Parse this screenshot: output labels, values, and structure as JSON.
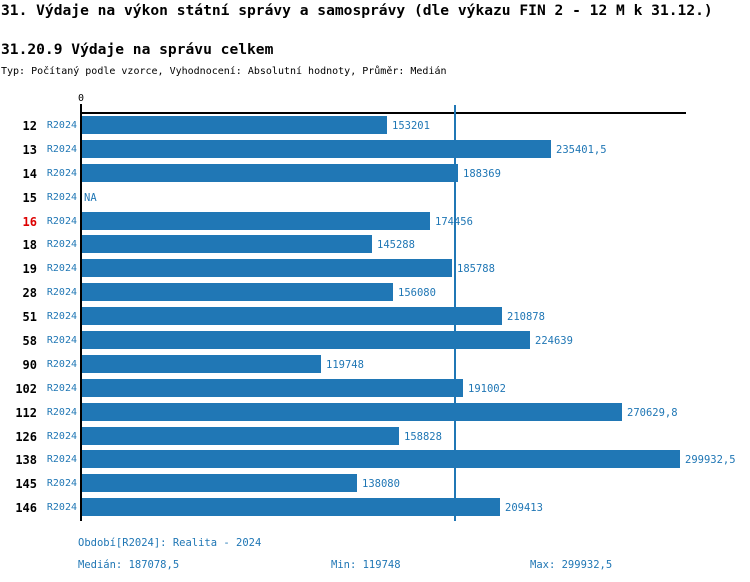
{
  "page": {
    "title": "31. Výdaje na výkon státní správy a samosprávy (dle výkazu FIN 2 - 12 M k 31.12.)",
    "subtitle": "31.20.9 Výdaje na správu celkem",
    "meta": "Typ: Počítaný podle vzorce, Vyhodnocení: Absolutní hodnoty, Průměr: Medián"
  },
  "chart_data": {
    "type": "bar",
    "orientation": "horizontal",
    "title": "31.20.9 Výdaje na správu celkem",
    "categories": [
      "12",
      "13",
      "14",
      "15",
      "16",
      "18",
      "19",
      "28",
      "51",
      "58",
      "90",
      "102",
      "112",
      "126",
      "138",
      "145",
      "146"
    ],
    "series_label": "R2024",
    "values": [
      153201,
      235401.5,
      188369,
      null,
      174456,
      145288,
      185788,
      156080,
      210878,
      224639,
      119748,
      191002,
      270629.8,
      158828,
      299932.5,
      138080,
      209413
    ],
    "value_labels": [
      "153201",
      "235401,5",
      "188369",
      "NA",
      "174456",
      "145288",
      "185788",
      "156080",
      "210878",
      "224639",
      "119748",
      "191002",
      "270629,8",
      "158828",
      "299932,5",
      "138080",
      "209413"
    ],
    "highlighted_category": "16",
    "zero_tick_label": "0",
    "xlim": [
      0,
      302950
    ],
    "median_value": 187078.5,
    "grid": false,
    "legend": false,
    "colors": {
      "bar": "#2077B5",
      "median_line": "#2077B5",
      "label_blue": "#2077B5",
      "highlight_red": "#DD0000",
      "axis": "#000000"
    }
  },
  "footer": {
    "period": "Období[R2024]: Realita - 2024",
    "median": "Medián: 187078,5",
    "min": "Min: 119748",
    "max": "Max: 299932,5"
  }
}
